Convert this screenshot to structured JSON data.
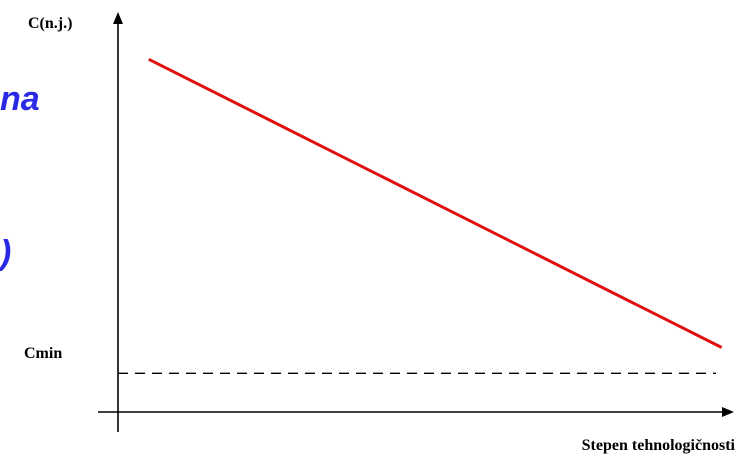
{
  "fragments": [
    "na",
    ")"
  ],
  "chart_data": {
    "type": "line",
    "ylabel": "C(n.j.)",
    "xlabel": "Stepen tehnologičnosti",
    "reference_label": "Cmin",
    "series": [
      {
        "color": "#e01010",
        "x": [
          0.05,
          0.98
        ],
        "y": [
          0.82,
          0.15
        ]
      }
    ],
    "reference_line": {
      "y": 0.09,
      "style": "dashed",
      "color": "#000000"
    },
    "xlim": [
      0,
      1
    ],
    "ylim": [
      0,
      0.93
    ],
    "grid": false,
    "show_ticks": false
  }
}
